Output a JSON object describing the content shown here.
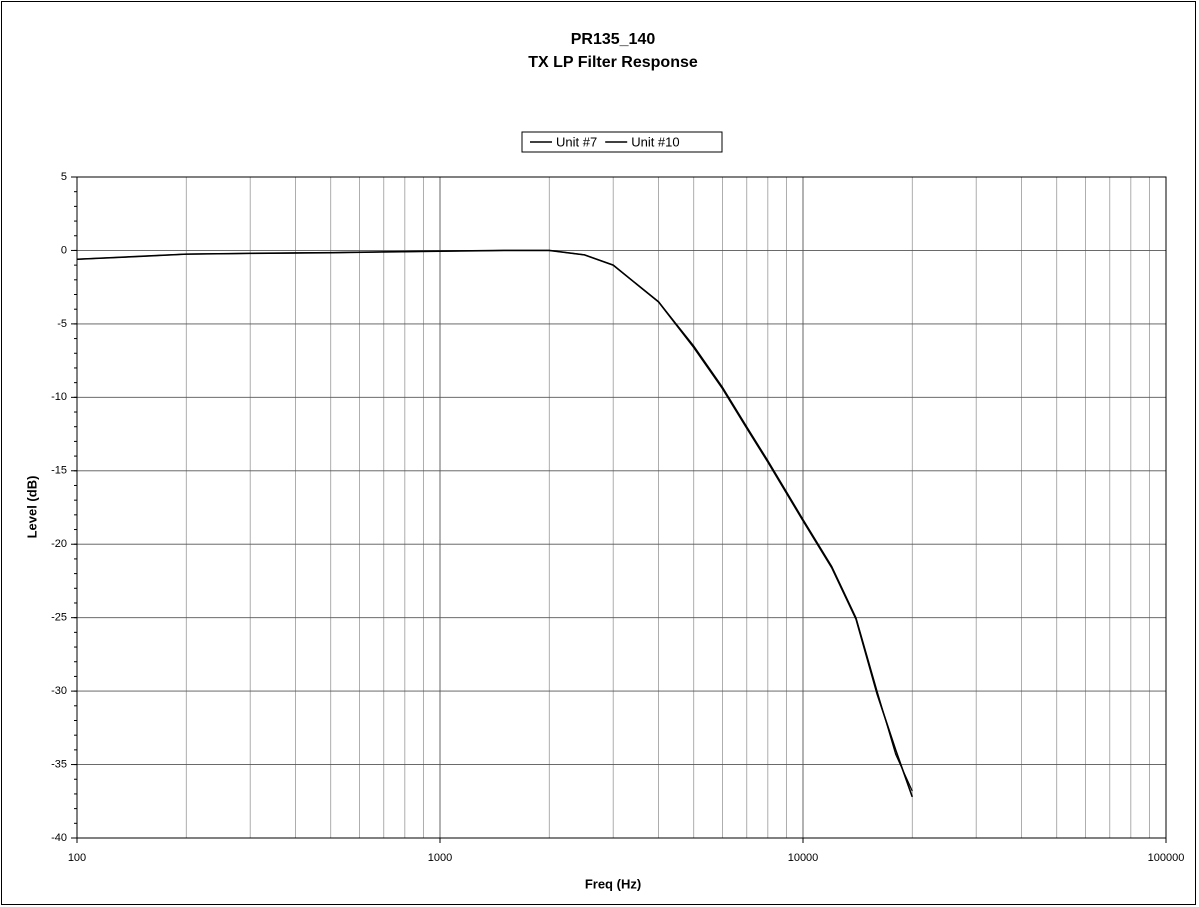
{
  "chart_data": {
    "type": "line",
    "title": "PR135_140",
    "subtitle": "TX LP Filter Response",
    "x_label": "Freq (Hz)",
    "y_label": "Level (dB)",
    "x": [
      100,
      150,
      200,
      300,
      500,
      700,
      1000,
      1500,
      2000,
      2500,
      3000,
      4000,
      5000,
      6000,
      7000,
      8000,
      10000,
      12000,
      14000,
      16000,
      18000,
      20000
    ],
    "series": [
      {
        "name": "Unit #7",
        "color": "#000000",
        "values": [
          -0.6,
          -0.4,
          -0.25,
          -0.2,
          -0.15,
          -0.1,
          -0.05,
          0,
          0,
          -0.3,
          -1.0,
          -3.5,
          -6.5,
          -9.3,
          -12,
          -14.3,
          -18.3,
          -21.5,
          -25,
          -30,
          -34.3,
          -36.8
        ]
      },
      {
        "name": "Unit #10",
        "color": "#000000",
        "values": [
          -0.6,
          -0.4,
          -0.25,
          -0.2,
          -0.15,
          -0.1,
          -0.05,
          0,
          0,
          -0.3,
          -1.0,
          -3.5,
          -6.6,
          -9.4,
          -12.1,
          -14.4,
          -18.4,
          -21.6,
          -25.1,
          -30.2,
          -34.0,
          -37.2
        ]
      }
    ],
    "xlog": true,
    "xlim": [
      100,
      100000
    ],
    "xticks": [
      100,
      1000,
      10000,
      100000
    ],
    "ylim": [
      -40,
      5
    ],
    "yticks": [
      5,
      0,
      -5,
      -10,
      -15,
      -20,
      -25,
      -30,
      -35,
      -40
    ],
    "grid": true,
    "minor_grid": true,
    "legend": "top"
  }
}
